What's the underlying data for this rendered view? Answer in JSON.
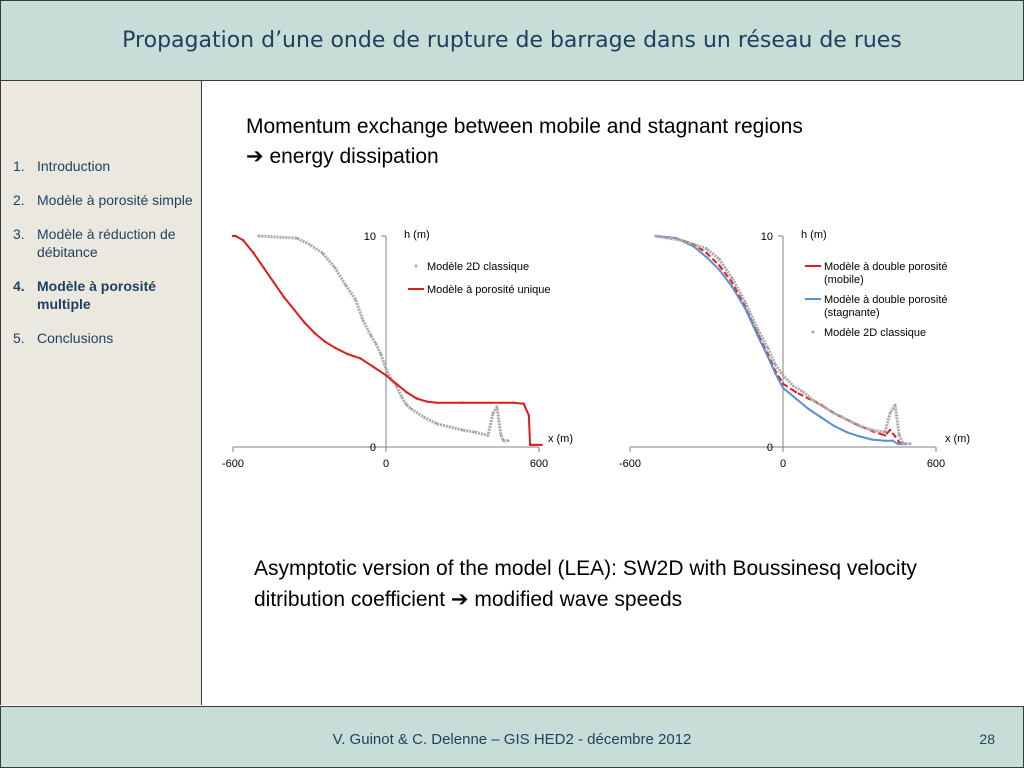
{
  "header": {
    "title": "Propagation d’une onde de rupture de barrage dans un réseau de rues"
  },
  "toc": {
    "items": [
      {
        "num": "1.",
        "label": "Introduction",
        "active": false
      },
      {
        "num": "2.",
        "label": "Modèle à porosité simple",
        "active": false
      },
      {
        "num": "3.",
        "label": "Modèle à réduction de débitance",
        "active": false
      },
      {
        "num": "4.",
        "label": "Modèle à porosité multiple",
        "active": true
      },
      {
        "num": "5.",
        "label": "Conclusions",
        "active": false
      }
    ]
  },
  "body": {
    "text1_line1": "Momentum exchange between mobile and stagnant regions",
    "text1_arrow": "➔",
    "text1_line2": "energy dissipation",
    "text2_part1": "Asymptotic version of the model (LEA): SW2D with Boussinesq velocity ditribution coefficient",
    "text2_arrow": "➔",
    "text2_part2": "modified wave speeds"
  },
  "footer": {
    "credit": "V. Guinot & C. Delenne – GIS HED2 - décembre 2012",
    "page_number": "28"
  },
  "colors": {
    "red": "#e01b1b",
    "blue": "#5a8fd0",
    "gray": "#a9a9a9",
    "header_bg": "#c6ddd8",
    "sidebar_bg": "#ebe9df"
  },
  "chart_data": [
    {
      "type": "line",
      "xlabel": "x (m)",
      "ylabel": "h (m)",
      "xlim": [
        -600,
        600
      ],
      "ylim": [
        0,
        10
      ],
      "xticks": [
        "-600",
        "0",
        "600"
      ],
      "yticks": [
        "0",
        "10"
      ],
      "legend": "top-right",
      "series": [
        {
          "name": "Modèle 2D classique",
          "color": "#a9a9a9",
          "style": "dotted-scatter",
          "points": [
            [
              -500,
              10
            ],
            [
              -350,
              9.9
            ],
            [
              -300,
              9.6
            ],
            [
              -250,
              9.2
            ],
            [
              -200,
              8.5
            ],
            [
              -160,
              7.7
            ],
            [
              -120,
              7.0
            ],
            [
              -90,
              6.0
            ],
            [
              -60,
              5.3
            ],
            [
              -40,
              4.9
            ],
            [
              -20,
              4.4
            ],
            [
              0,
              3.7
            ],
            [
              20,
              3.2
            ],
            [
              40,
              2.9
            ],
            [
              60,
              2.4
            ],
            [
              80,
              2.0
            ],
            [
              100,
              1.8
            ],
            [
              150,
              1.4
            ],
            [
              200,
              1.1
            ],
            [
              250,
              0.95
            ],
            [
              300,
              0.8
            ],
            [
              350,
              0.7
            ],
            [
              400,
              0.55
            ],
            [
              420,
              1.6
            ],
            [
              435,
              1.9
            ],
            [
              450,
              0.6
            ],
            [
              460,
              0.3
            ],
            [
              480,
              0.3
            ]
          ]
        },
        {
          "name": "Modèle à porosité unique",
          "color": "#e01b1b",
          "style": "line",
          "points": [
            [
              -600,
              10
            ],
            [
              -590,
              10
            ],
            [
              -560,
              9.8
            ],
            [
              -520,
              9.2
            ],
            [
              -480,
              8.5
            ],
            [
              -440,
              7.8
            ],
            [
              -400,
              7.1
            ],
            [
              -360,
              6.5
            ],
            [
              -320,
              5.9
            ],
            [
              -280,
              5.4
            ],
            [
              -240,
              5.0
            ],
            [
              -200,
              4.7
            ],
            [
              -150,
              4.4
            ],
            [
              -100,
              4.2
            ],
            [
              -50,
              3.8
            ],
            [
              0,
              3.4
            ],
            [
              40,
              3.0
            ],
            [
              80,
              2.6
            ],
            [
              120,
              2.3
            ],
            [
              160,
              2.15
            ],
            [
              200,
              2.1
            ],
            [
              300,
              2.1
            ],
            [
              500,
              2.1
            ],
            [
              540,
              2.05
            ],
            [
              560,
              1.5
            ],
            [
              565,
              0.1
            ],
            [
              610,
              0.1
            ]
          ]
        }
      ]
    },
    {
      "type": "line",
      "xlabel": "x (m)",
      "ylabel": "h (m)",
      "xlim": [
        -600,
        600
      ],
      "ylim": [
        0,
        10
      ],
      "xticks": [
        "-600",
        "0",
        "600"
      ],
      "yticks": [
        "0",
        "10"
      ],
      "legend": "top-right",
      "series": [
        {
          "name": "Modèle à double porosité (mobile)",
          "color": "#e01b1b",
          "style": "dashed",
          "points": [
            [
              -500,
              10
            ],
            [
              -420,
              9.9
            ],
            [
              -350,
              9.6
            ],
            [
              -300,
              9.2
            ],
            [
              -250,
              8.6
            ],
            [
              -200,
              7.8
            ],
            [
              -150,
              6.7
            ],
            [
              -100,
              5.4
            ],
            [
              -60,
              4.4
            ],
            [
              -30,
              3.6
            ],
            [
              0,
              3.0
            ],
            [
              50,
              2.6
            ],
            [
              100,
              2.3
            ],
            [
              150,
              2.0
            ],
            [
              200,
              1.6
            ],
            [
              250,
              1.3
            ],
            [
              300,
              1.0
            ],
            [
              350,
              0.75
            ],
            [
              400,
              0.55
            ],
            [
              420,
              0.8
            ],
            [
              440,
              0.5
            ],
            [
              460,
              0.15
            ],
            [
              480,
              0.15
            ]
          ]
        },
        {
          "name": "Modèle à double porosité (stagnante)",
          "color": "#5a8fd0",
          "style": "line",
          "points": [
            [
              -500,
              10
            ],
            [
              -420,
              9.9
            ],
            [
              -350,
              9.5
            ],
            [
              -300,
              9.0
            ],
            [
              -250,
              8.4
            ],
            [
              -200,
              7.6
            ],
            [
              -150,
              6.6
            ],
            [
              -100,
              5.3
            ],
            [
              -60,
              4.3
            ],
            [
              -30,
              3.5
            ],
            [
              0,
              2.8
            ],
            [
              50,
              2.3
            ],
            [
              100,
              1.8
            ],
            [
              150,
              1.4
            ],
            [
              200,
              1.0
            ],
            [
              250,
              0.7
            ],
            [
              300,
              0.5
            ],
            [
              350,
              0.35
            ],
            [
              400,
              0.3
            ],
            [
              430,
              0.3
            ],
            [
              450,
              0.15
            ],
            [
              480,
              0.15
            ]
          ]
        },
        {
          "name": "Modèle 2D classique",
          "color": "#a9a9a9",
          "style": "dotted-scatter",
          "points": [
            [
              -500,
              10
            ],
            [
              -400,
              9.8
            ],
            [
              -300,
              9.4
            ],
            [
              -250,
              8.9
            ],
            [
              -200,
              8.0
            ],
            [
              -150,
              6.9
            ],
            [
              -100,
              5.6
            ],
            [
              -60,
              4.7
            ],
            [
              -30,
              3.9
            ],
            [
              0,
              3.4
            ],
            [
              40,
              2.9
            ],
            [
              80,
              2.6
            ],
            [
              120,
              2.2
            ],
            [
              160,
              1.9
            ],
            [
              200,
              1.6
            ],
            [
              250,
              1.3
            ],
            [
              300,
              1.0
            ],
            [
              350,
              0.8
            ],
            [
              400,
              0.7
            ],
            [
              420,
              1.6
            ],
            [
              440,
              2.0
            ],
            [
              455,
              0.6
            ],
            [
              470,
              0.15
            ],
            [
              500,
              0.15
            ]
          ]
        }
      ]
    }
  ]
}
